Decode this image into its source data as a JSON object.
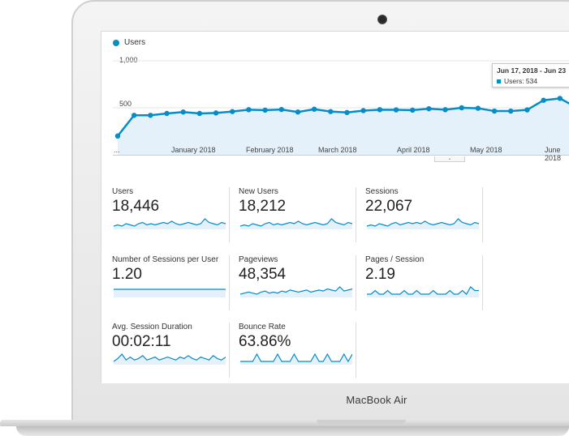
{
  "device": {
    "brand": "MacBook Air"
  },
  "chart": {
    "legend": "Users",
    "y_ticks": [
      "1,000",
      "500"
    ],
    "x_ticks": [
      "...",
      "January 2018",
      "February 2018",
      "March 2018",
      "April 2018",
      "May 2018",
      "June 2018"
    ],
    "tooltip": {
      "date": "Jun 17, 2018 - Jun 23",
      "metric": "Users: 534"
    }
  },
  "chart_data": {
    "type": "line",
    "series": [
      {
        "name": "Users",
        "values": [
          200,
          420,
          420,
          440,
          455,
          440,
          445,
          460,
          480,
          475,
          482,
          455,
          485,
          460,
          450,
          470,
          480,
          478,
          475,
          490,
          480,
          500,
          495,
          465,
          465,
          478,
          580,
          600,
          505
        ]
      }
    ],
    "ylim": [
      0,
      1000
    ],
    "grid": true,
    "legend": "top-left"
  },
  "metrics": [
    {
      "label": "Users",
      "value": "18,446",
      "spark": [
        6,
        7,
        6,
        8,
        7,
        6,
        8,
        9,
        7,
        8,
        7,
        8,
        9,
        8,
        10,
        8,
        7,
        8,
        9,
        8,
        7,
        8,
        12,
        9,
        8,
        7,
        9,
        8
      ]
    },
    {
      "label": "New Users",
      "value": "18,212",
      "spark": [
        6,
        7,
        6,
        8,
        7,
        6,
        8,
        9,
        7,
        8,
        7,
        8,
        9,
        8,
        10,
        8,
        7,
        8,
        9,
        8,
        7,
        8,
        12,
        9,
        8,
        7,
        9,
        8
      ]
    },
    {
      "label": "Sessions",
      "value": "22,067",
      "spark": [
        6,
        7,
        6,
        8,
        7,
        6,
        8,
        9,
        7,
        8,
        9,
        8,
        9,
        8,
        10,
        8,
        7,
        8,
        9,
        8,
        7,
        8,
        12,
        9,
        8,
        7,
        9,
        8
      ]
    },
    {
      "label": "Number of Sessions per User",
      "value": "1.20",
      "spark": [
        9,
        9,
        9,
        9,
        9,
        9,
        9,
        9,
        9,
        9,
        9,
        9,
        9,
        9,
        9,
        9,
        9,
        9,
        9,
        9,
        9,
        9,
        9,
        9,
        9,
        9,
        9,
        9
      ]
    },
    {
      "label": "Pageviews",
      "value": "48,354",
      "spark": [
        5,
        6,
        7,
        6,
        5,
        7,
        8,
        6,
        7,
        6,
        8,
        7,
        9,
        8,
        7,
        8,
        9,
        7,
        8,
        9,
        8,
        10,
        9,
        8,
        12,
        8,
        9,
        10
      ]
    },
    {
      "label": "Pages / Session",
      "value": "2.19",
      "spark": [
        7,
        7,
        8,
        7,
        7,
        8,
        7,
        7,
        7,
        8,
        7,
        7,
        8,
        7,
        7,
        7,
        8,
        7,
        7,
        7,
        8,
        7,
        7,
        8,
        7,
        9,
        8,
        8
      ]
    },
    {
      "label": "Avg. Session Duration",
      "value": "00:02:11",
      "spark": [
        5,
        7,
        10,
        6,
        8,
        6,
        7,
        9,
        6,
        7,
        8,
        6,
        7,
        8,
        7,
        6,
        8,
        7,
        9,
        7,
        6,
        8,
        7,
        6,
        9,
        7,
        6,
        8
      ]
    },
    {
      "label": "Bounce Rate",
      "value": "63.86%",
      "spark": [
        8,
        8,
        8,
        8,
        9,
        8,
        8,
        8,
        8,
        9,
        8,
        8,
        8,
        9,
        8,
        8,
        8,
        8,
        9,
        8,
        8,
        9,
        8,
        8,
        8,
        9,
        8,
        9
      ]
    }
  ],
  "colors": {
    "accent": "#058dc7",
    "fill": "#e5f1fa"
  }
}
